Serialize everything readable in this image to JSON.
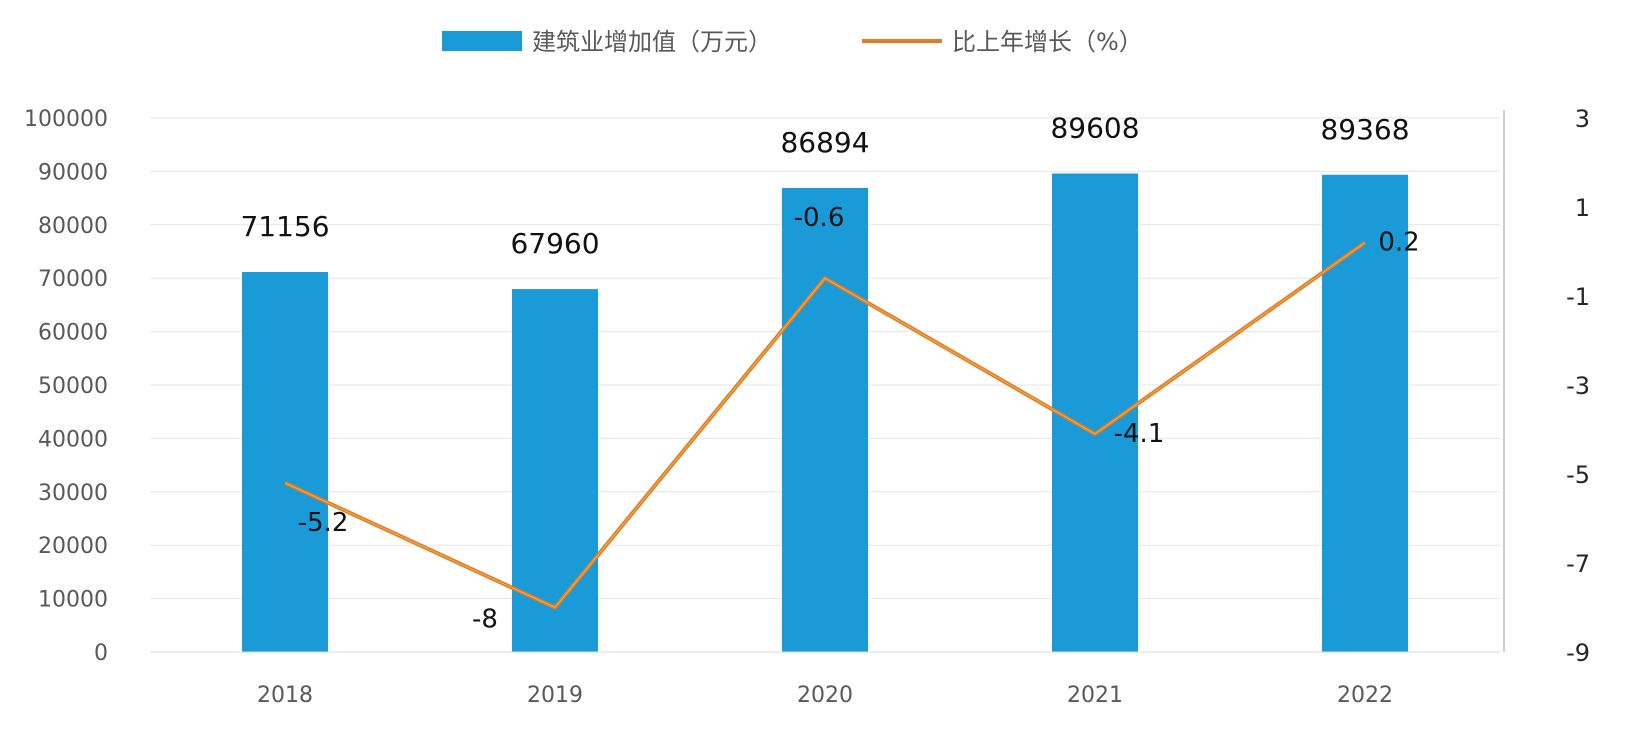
{
  "chart_data": {
    "type": "bar",
    "categories": [
      "2018",
      "2019",
      "2020",
      "2021",
      "2022"
    ],
    "series": [
      {
        "name": "建筑业增加值（万元）",
        "type": "bar",
        "axis": "left",
        "color": "#1a9ad6",
        "values": [
          71156,
          67960,
          86894,
          89608,
          89368
        ],
        "labels": [
          "71156",
          "67960",
          "86894",
          "89608",
          "89368"
        ]
      },
      {
        "name": "比上年增长（%）",
        "type": "line",
        "axis": "right",
        "color": "#e07b2a",
        "values": [
          -5.2,
          -8,
          -0.6,
          -4.1,
          0.2
        ],
        "labels": [
          "-5.2",
          "-8",
          "-0.6",
          "-4.1",
          "0.2"
        ]
      }
    ],
    "y_left": {
      "ylim": [
        0,
        100000
      ],
      "ticks": [
        "0",
        "10000",
        "20000",
        "30000",
        "40000",
        "50000",
        "60000",
        "70000",
        "80000",
        "90000",
        "100000"
      ]
    },
    "y_right": {
      "ylim": [
        -9,
        3
      ],
      "ticks": [
        "3",
        "1",
        "-1",
        "-3",
        "-5",
        "-7",
        "-9"
      ]
    },
    "grid": true,
    "legend_position": "top"
  }
}
